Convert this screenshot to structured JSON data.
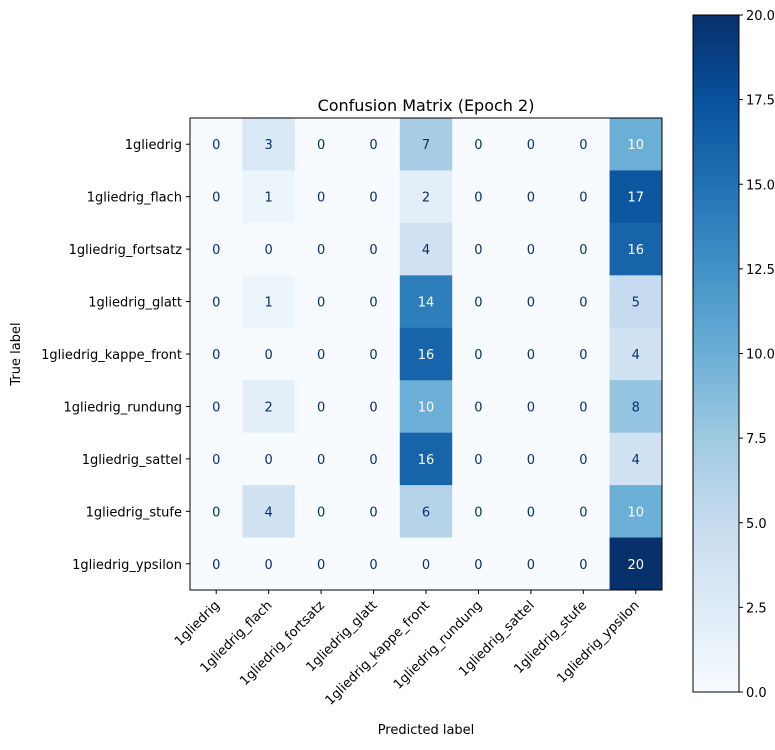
{
  "chart_data": {
    "type": "heatmap",
    "title": "Confusion Matrix (Epoch 2)",
    "xlabel": "Predicted label",
    "ylabel": "True label",
    "x_categories": [
      "1gliedrig",
      "1gliedrig_flach",
      "1gliedrig_fortsatz",
      "1gliedrig_glatt",
      "1gliedrig_kappe_front",
      "1gliedrig_rundung",
      "1gliedrig_sattel",
      "1gliedrig_stufe",
      "1gliedrig_ypsilon"
    ],
    "y_categories": [
      "1gliedrig",
      "1gliedrig_flach",
      "1gliedrig_fortsatz",
      "1gliedrig_glatt",
      "1gliedrig_kappe_front",
      "1gliedrig_rundung",
      "1gliedrig_sattel",
      "1gliedrig_stufe",
      "1gliedrig_ypsilon"
    ],
    "matrix": [
      [
        0,
        3,
        0,
        0,
        7,
        0,
        0,
        0,
        10
      ],
      [
        0,
        1,
        0,
        0,
        2,
        0,
        0,
        0,
        17
      ],
      [
        0,
        0,
        0,
        0,
        4,
        0,
        0,
        0,
        16
      ],
      [
        0,
        1,
        0,
        0,
        14,
        0,
        0,
        0,
        5
      ],
      [
        0,
        0,
        0,
        0,
        16,
        0,
        0,
        0,
        4
      ],
      [
        0,
        2,
        0,
        0,
        10,
        0,
        0,
        0,
        8
      ],
      [
        0,
        0,
        0,
        0,
        16,
        0,
        0,
        0,
        4
      ],
      [
        0,
        4,
        0,
        0,
        6,
        0,
        0,
        0,
        10
      ],
      [
        0,
        0,
        0,
        0,
        0,
        0,
        0,
        0,
        20
      ]
    ],
    "colormap": "Blues",
    "vmin": 0,
    "vmax": 20,
    "colorbar_ticks": [
      "0.0",
      "2.5",
      "5.0",
      "7.5",
      "10.0",
      "12.5",
      "15.0",
      "17.5",
      "20.0"
    ],
    "colorbar_tick_values": [
      0,
      2.5,
      5,
      7.5,
      10,
      12.5,
      15,
      17.5,
      20
    ]
  }
}
